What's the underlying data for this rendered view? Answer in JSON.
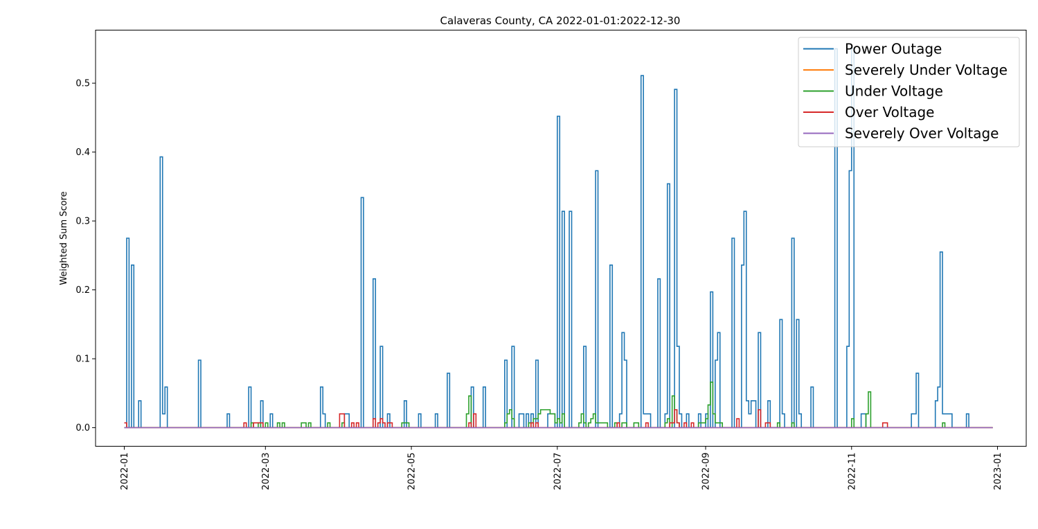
{
  "chart_data": {
    "type": "line",
    "step": true,
    "title": "Calaveras County, CA 2022-01-01:2022-12-30",
    "xlabel": "",
    "ylabel": "Weighted Sum Score",
    "x_range": [
      "2021-12-20",
      "2023-01-13"
    ],
    "ylim": [
      -0.027,
      0.577
    ],
    "x_ticks": [
      "2022-01",
      "2022-03",
      "2022-05",
      "2022-07",
      "2022-09",
      "2022-11",
      "2023-01"
    ],
    "y_ticks": [
      "0.0",
      "0.1",
      "0.2",
      "0.3",
      "0.4",
      "0.5"
    ],
    "grid": false,
    "legend_position": "top-right",
    "series": [
      {
        "name": "Power Outage",
        "color": "#1f77b4",
        "points": [
          [
            "2022-01-01",
            0
          ],
          [
            "2022-01-02",
            0.275
          ],
          [
            "2022-01-03",
            0
          ],
          [
            "2022-01-04",
            0.236
          ],
          [
            "2022-01-05",
            0
          ],
          [
            "2022-01-07",
            0.039
          ],
          [
            "2022-01-08",
            0
          ],
          [
            "2022-01-16",
            0.393
          ],
          [
            "2022-01-17",
            0.02
          ],
          [
            "2022-01-18",
            0.059
          ],
          [
            "2022-01-19",
            0
          ],
          [
            "2022-02-01",
            0.098
          ],
          [
            "2022-02-02",
            0
          ],
          [
            "2022-02-13",
            0.02
          ],
          [
            "2022-02-14",
            0
          ],
          [
            "2022-02-22",
            0.059
          ],
          [
            "2022-02-23",
            0
          ],
          [
            "2022-02-27",
            0.039
          ],
          [
            "2022-02-28",
            0
          ],
          [
            "2022-03-03",
            0.02
          ],
          [
            "2022-03-04",
            0
          ],
          [
            "2022-03-24",
            0.059
          ],
          [
            "2022-03-25",
            0.02
          ],
          [
            "2022-03-26",
            0
          ],
          [
            "2022-04-03",
            0.02
          ],
          [
            "2022-04-05",
            0
          ],
          [
            "2022-04-10",
            0.334
          ],
          [
            "2022-04-11",
            0
          ],
          [
            "2022-04-15",
            0.216
          ],
          [
            "2022-04-16",
            0
          ],
          [
            "2022-04-18",
            0.118
          ],
          [
            "2022-04-19",
            0
          ],
          [
            "2022-04-21",
            0.02
          ],
          [
            "2022-04-22",
            0
          ],
          [
            "2022-04-28",
            0.039
          ],
          [
            "2022-04-29",
            0
          ],
          [
            "2022-05-04",
            0.02
          ],
          [
            "2022-05-05",
            0
          ],
          [
            "2022-05-11",
            0.02
          ],
          [
            "2022-05-12",
            0
          ],
          [
            "2022-05-16",
            0.079
          ],
          [
            "2022-05-17",
            0
          ],
          [
            "2022-05-26",
            0.059
          ],
          [
            "2022-05-27",
            0
          ],
          [
            "2022-05-31",
            0.059
          ],
          [
            "2022-06-01",
            0
          ],
          [
            "2022-06-09",
            0.098
          ],
          [
            "2022-06-10",
            0
          ],
          [
            "2022-06-12",
            0.118
          ],
          [
            "2022-06-13",
            0
          ],
          [
            "2022-06-15",
            0.02
          ],
          [
            "2022-06-17",
            0
          ],
          [
            "2022-06-18",
            0.02
          ],
          [
            "2022-06-19",
            0
          ],
          [
            "2022-06-20",
            0.02
          ],
          [
            "2022-06-21",
            0
          ],
          [
            "2022-06-22",
            0.098
          ],
          [
            "2022-06-23",
            0
          ],
          [
            "2022-06-27",
            0.02
          ],
          [
            "2022-06-30",
            0
          ],
          [
            "2022-07-01",
            0.452
          ],
          [
            "2022-07-02",
            0
          ],
          [
            "2022-07-03",
            0.314
          ],
          [
            "2022-07-04",
            0
          ],
          [
            "2022-07-06",
            0.314
          ],
          [
            "2022-07-07",
            0
          ],
          [
            "2022-07-12",
            0.118
          ],
          [
            "2022-07-13",
            0
          ],
          [
            "2022-07-17",
            0.373
          ],
          [
            "2022-07-18",
            0
          ],
          [
            "2022-07-23",
            0.236
          ],
          [
            "2022-07-24",
            0
          ],
          [
            "2022-07-27",
            0.02
          ],
          [
            "2022-07-28",
            0.138
          ],
          [
            "2022-07-29",
            0.098
          ],
          [
            "2022-07-30",
            0
          ],
          [
            "2022-08-05",
            0.511
          ],
          [
            "2022-08-06",
            0.02
          ],
          [
            "2022-08-08",
            0.02
          ],
          [
            "2022-08-09",
            0
          ],
          [
            "2022-08-12",
            0.216
          ],
          [
            "2022-08-13",
            0
          ],
          [
            "2022-08-15",
            0.02
          ],
          [
            "2022-08-16",
            0.354
          ],
          [
            "2022-08-17",
            0
          ],
          [
            "2022-08-19",
            0.491
          ],
          [
            "2022-08-20",
            0.118
          ],
          [
            "2022-08-21",
            0.02
          ],
          [
            "2022-08-22",
            0
          ],
          [
            "2022-08-24",
            0.02
          ],
          [
            "2022-08-25",
            0
          ],
          [
            "2022-08-29",
            0.02
          ],
          [
            "2022-08-30",
            0
          ],
          [
            "2022-09-01",
            0.02
          ],
          [
            "2022-09-02",
            0
          ],
          [
            "2022-09-03",
            0.197
          ],
          [
            "2022-09-04",
            0
          ],
          [
            "2022-09-05",
            0.098
          ],
          [
            "2022-09-06",
            0.138
          ],
          [
            "2022-09-07",
            0
          ],
          [
            "2022-09-12",
            0.275
          ],
          [
            "2022-09-13",
            0
          ],
          [
            "2022-09-16",
            0.236
          ],
          [
            "2022-09-17",
            0.314
          ],
          [
            "2022-09-18",
            0.039
          ],
          [
            "2022-09-19",
            0.02
          ],
          [
            "2022-09-20",
            0.039
          ],
          [
            "2022-09-22",
            0
          ],
          [
            "2022-09-23",
            0.138
          ],
          [
            "2022-09-24",
            0
          ],
          [
            "2022-09-27",
            0.039
          ],
          [
            "2022-09-28",
            0
          ],
          [
            "2022-10-02",
            0.157
          ],
          [
            "2022-10-03",
            0.02
          ],
          [
            "2022-10-04",
            0
          ],
          [
            "2022-10-07",
            0.275
          ],
          [
            "2022-10-08",
            0
          ],
          [
            "2022-10-09",
            0.157
          ],
          [
            "2022-10-10",
            0.02
          ],
          [
            "2022-10-11",
            0
          ],
          [
            "2022-10-15",
            0.059
          ],
          [
            "2022-10-16",
            0
          ],
          [
            "2022-10-25",
            0.55
          ],
          [
            "2022-10-26",
            0
          ],
          [
            "2022-10-30",
            0.118
          ],
          [
            "2022-10-31",
            0.373
          ],
          [
            "2022-11-01",
            0.55
          ],
          [
            "2022-11-02",
            0
          ],
          [
            "2022-11-05",
            0.02
          ],
          [
            "2022-11-07",
            0
          ],
          [
            "2022-11-26",
            0.02
          ],
          [
            "2022-11-28",
            0.079
          ],
          [
            "2022-11-29",
            0
          ],
          [
            "2022-12-06",
            0.039
          ],
          [
            "2022-12-07",
            0.059
          ],
          [
            "2022-12-08",
            0.255
          ],
          [
            "2022-12-09",
            0.02
          ],
          [
            "2022-12-13",
            0
          ],
          [
            "2022-12-19",
            0.02
          ],
          [
            "2022-12-20",
            0
          ],
          [
            "2022-12-30",
            0
          ]
        ]
      },
      {
        "name": "Severely Under Voltage",
        "color": "#ff7f0e",
        "points": [
          [
            "2022-01-01",
            0
          ],
          [
            "2022-12-30",
            0
          ]
        ]
      },
      {
        "name": "Under Voltage",
        "color": "#2ca02c",
        "points": [
          [
            "2022-01-01",
            0
          ],
          [
            "2022-02-23",
            0.007
          ],
          [
            "2022-02-24",
            0
          ],
          [
            "2022-02-26",
            0.007
          ],
          [
            "2022-02-27",
            0
          ],
          [
            "2022-03-01",
            0.007
          ],
          [
            "2022-03-02",
            0
          ],
          [
            "2022-03-06",
            0.007
          ],
          [
            "2022-03-07",
            0
          ],
          [
            "2022-03-08",
            0.007
          ],
          [
            "2022-03-09",
            0
          ],
          [
            "2022-03-16",
            0.007
          ],
          [
            "2022-03-18",
            0
          ],
          [
            "2022-03-19",
            0.007
          ],
          [
            "2022-03-20",
            0
          ],
          [
            "2022-03-27",
            0.007
          ],
          [
            "2022-03-28",
            0
          ],
          [
            "2022-04-02",
            0.007
          ],
          [
            "2022-04-03",
            0
          ],
          [
            "2022-04-27",
            0.007
          ],
          [
            "2022-04-30",
            0
          ],
          [
            "2022-05-24",
            0.02
          ],
          [
            "2022-05-25",
            0.046
          ],
          [
            "2022-05-26",
            0
          ],
          [
            "2022-06-09",
            0.007
          ],
          [
            "2022-06-10",
            0.02
          ],
          [
            "2022-06-11",
            0.026
          ],
          [
            "2022-06-12",
            0.013
          ],
          [
            "2022-06-13",
            0
          ],
          [
            "2022-06-19",
            0.007
          ],
          [
            "2022-06-20",
            0
          ],
          [
            "2022-06-21",
            0.013
          ],
          [
            "2022-06-23",
            0.02
          ],
          [
            "2022-06-24",
            0.026
          ],
          [
            "2022-06-28",
            0.02
          ],
          [
            "2022-06-30",
            0.007
          ],
          [
            "2022-07-01",
            0.013
          ],
          [
            "2022-07-02",
            0.007
          ],
          [
            "2022-07-03",
            0.02
          ],
          [
            "2022-07-04",
            0
          ],
          [
            "2022-07-10",
            0.007
          ],
          [
            "2022-07-11",
            0.02
          ],
          [
            "2022-07-12",
            0.007
          ],
          [
            "2022-07-13",
            0
          ],
          [
            "2022-07-14",
            0.007
          ],
          [
            "2022-07-15",
            0.013
          ],
          [
            "2022-07-16",
            0.02
          ],
          [
            "2022-07-17",
            0.007
          ],
          [
            "2022-07-22",
            0
          ],
          [
            "2022-07-25",
            0.007
          ],
          [
            "2022-07-26",
            0
          ],
          [
            "2022-07-28",
            0.007
          ],
          [
            "2022-07-30",
            0
          ],
          [
            "2022-08-02",
            0.007
          ],
          [
            "2022-08-04",
            0
          ],
          [
            "2022-08-15",
            0.007
          ],
          [
            "2022-08-16",
            0.013
          ],
          [
            "2022-08-17",
            0
          ],
          [
            "2022-08-18",
            0.046
          ],
          [
            "2022-08-19",
            0.026
          ],
          [
            "2022-08-20",
            0.007
          ],
          [
            "2022-08-21",
            0
          ],
          [
            "2022-08-29",
            0.007
          ],
          [
            "2022-09-01",
            0.013
          ],
          [
            "2022-09-02",
            0.033
          ],
          [
            "2022-09-03",
            0.066
          ],
          [
            "2022-09-04",
            0.02
          ],
          [
            "2022-09-05",
            0.007
          ],
          [
            "2022-09-08",
            0
          ],
          [
            "2022-10-01",
            0.007
          ],
          [
            "2022-10-02",
            0
          ],
          [
            "2022-10-07",
            0.007
          ],
          [
            "2022-10-08",
            0
          ],
          [
            "2022-11-01",
            0.013
          ],
          [
            "2022-11-02",
            0
          ],
          [
            "2022-11-07",
            0.02
          ],
          [
            "2022-11-08",
            0.052
          ],
          [
            "2022-11-09",
            0
          ],
          [
            "2022-12-09",
            0.007
          ],
          [
            "2022-12-10",
            0
          ],
          [
            "2022-12-30",
            0
          ]
        ]
      },
      {
        "name": "Over Voltage",
        "color": "#d62728",
        "points": [
          [
            "2022-01-01",
            0.007
          ],
          [
            "2022-01-02",
            0
          ],
          [
            "2022-02-20",
            0.007
          ],
          [
            "2022-02-21",
            0
          ],
          [
            "2022-02-24",
            0.007
          ],
          [
            "2022-02-28",
            0
          ],
          [
            "2022-04-01",
            0.02
          ],
          [
            "2022-04-03",
            0
          ],
          [
            "2022-04-06",
            0.007
          ],
          [
            "2022-04-07",
            0
          ],
          [
            "2022-04-08",
            0.007
          ],
          [
            "2022-04-09",
            0
          ],
          [
            "2022-04-15",
            0.013
          ],
          [
            "2022-04-16",
            0
          ],
          [
            "2022-04-17",
            0.007
          ],
          [
            "2022-04-18",
            0.013
          ],
          [
            "2022-04-19",
            0.007
          ],
          [
            "2022-04-20",
            0
          ],
          [
            "2022-04-21",
            0.007
          ],
          [
            "2022-04-23",
            0
          ],
          [
            "2022-05-25",
            0.007
          ],
          [
            "2022-05-26",
            0
          ],
          [
            "2022-05-27",
            0.02
          ],
          [
            "2022-05-28",
            0
          ],
          [
            "2022-06-20",
            0.007
          ],
          [
            "2022-06-21",
            0
          ],
          [
            "2022-06-22",
            0.007
          ],
          [
            "2022-06-23",
            0
          ],
          [
            "2022-07-26",
            0.007
          ],
          [
            "2022-07-27",
            0
          ],
          [
            "2022-08-07",
            0.007
          ],
          [
            "2022-08-08",
            0
          ],
          [
            "2022-08-17",
            0.007
          ],
          [
            "2022-08-19",
            0.026
          ],
          [
            "2022-08-20",
            0.007
          ],
          [
            "2022-08-21",
            0
          ],
          [
            "2022-08-23",
            0.007
          ],
          [
            "2022-08-24",
            0
          ],
          [
            "2022-08-26",
            0.007
          ],
          [
            "2022-08-27",
            0
          ],
          [
            "2022-09-14",
            0.013
          ],
          [
            "2022-09-15",
            0
          ],
          [
            "2022-09-23",
            0.026
          ],
          [
            "2022-09-24",
            0
          ],
          [
            "2022-09-26",
            0.007
          ],
          [
            "2022-09-28",
            0
          ],
          [
            "2022-11-14",
            0.007
          ],
          [
            "2022-11-16",
            0
          ],
          [
            "2022-12-30",
            0
          ]
        ]
      },
      {
        "name": "Severely Over Voltage",
        "color": "#9467bd",
        "points": [
          [
            "2022-01-01",
            0
          ],
          [
            "2022-12-30",
            0
          ]
        ]
      }
    ]
  }
}
